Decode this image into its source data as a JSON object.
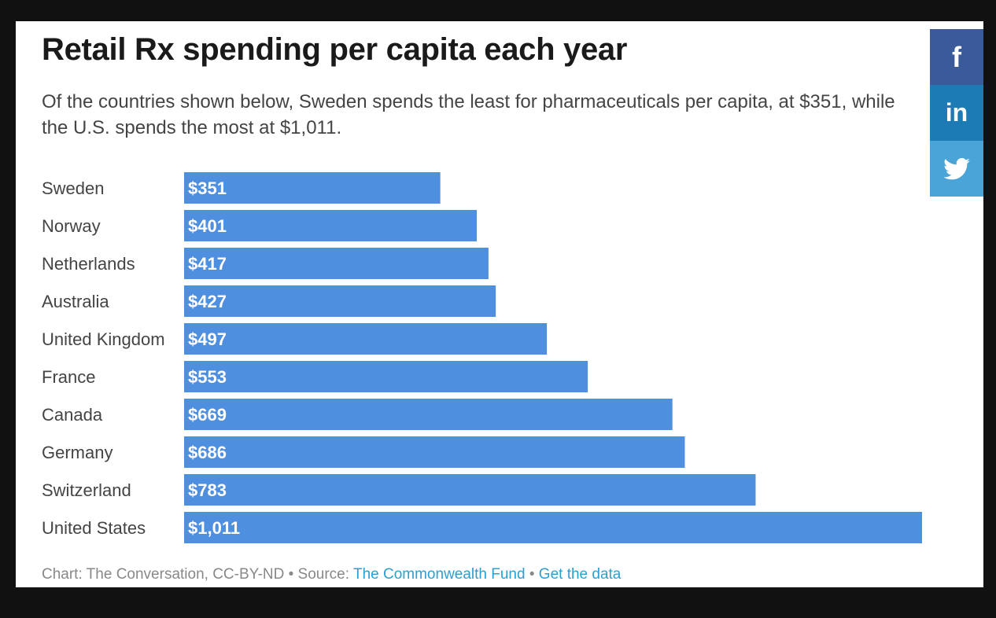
{
  "title": "Retail Rx spending per capita each year",
  "subtitle": "Of the countries shown below, Sweden spends the least for pharmaceuticals per capita, at $351, while the U.S. spends the most at $1,011.",
  "footer": {
    "prefix": "Chart: The Conversation, CC-BY-ND • Source: ",
    "source_link": "The Commonwealth Fund",
    "separator": " • ",
    "data_link": "Get the data"
  },
  "share": {
    "facebook_icon": "f",
    "linkedin_icon": "in",
    "twitter_icon": "twitter-bird-icon"
  },
  "colors": {
    "bar": "#4f8fe0",
    "facebook": "#3b5a9a",
    "linkedin": "#1c7bb5",
    "twitter": "#4aa4d8"
  },
  "chart_data": {
    "type": "bar",
    "orientation": "horizontal",
    "categories": [
      "Sweden",
      "Norway",
      "Netherlands",
      "Australia",
      "United Kingdom",
      "France",
      "Canada",
      "Germany",
      "Switzerland",
      "United States"
    ],
    "values": [
      351,
      401,
      417,
      427,
      497,
      553,
      669,
      686,
      783,
      1011
    ],
    "value_labels": [
      "$351",
      "$401",
      "$417",
      "$427",
      "$497",
      "$553",
      "$669",
      "$686",
      "$783",
      "$1,011"
    ],
    "xlim": [
      0,
      1011
    ],
    "grid": false
  }
}
